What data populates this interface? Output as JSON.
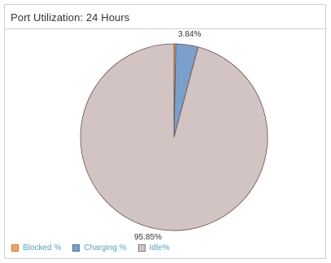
{
  "title": "Port Utilization: 24 Hours",
  "legend": [
    {
      "label": "Blocked %",
      "color": "#f4a35e",
      "border": "#c97a36"
    },
    {
      "label": "Charging %",
      "color": "#7b9fcb",
      "border": "#4e739f"
    },
    {
      "label": "Idle%",
      "color": "#d1c4c3",
      "border": "#8a7d7c"
    }
  ],
  "chart_data": {
    "type": "pie",
    "title": "Port Utilization: 24 Hours",
    "categories": [
      "Blocked %",
      "Charging %",
      "Idle%"
    ],
    "values": [
      0.31,
      3.84,
      95.85
    ],
    "colors": [
      "#f4a35e",
      "#7b9fcb",
      "#d1c4c3"
    ],
    "data_labels": [
      "",
      "3.84%",
      "95.85%"
    ],
    "legend_position": "bottom-left"
  }
}
